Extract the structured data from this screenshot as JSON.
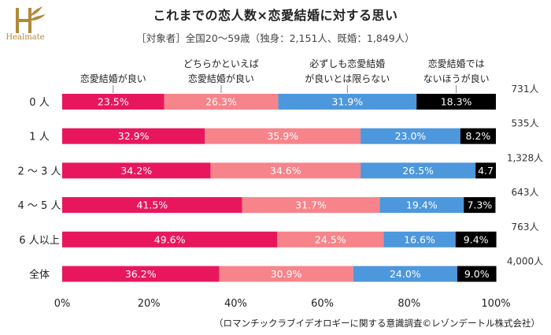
{
  "brand": {
    "logo_text": "Healmate",
    "logo_color": "#b08a3a"
  },
  "chart_data": {
    "type": "bar",
    "orientation": "horizontal",
    "stacked": true,
    "title": "これまでの恋人数×恋愛結婚に対する思い",
    "subtitle": "［対象者］全国20～59歳（独身：2,151人、既婚：1,849人）",
    "categories": [
      "0 人",
      "1 人",
      "2 ～ 3 人",
      "4 ～ 5 人",
      "6 人以上",
      "全体"
    ],
    "counts": [
      "731人",
      "535人",
      "1,328人",
      "643人",
      "763人",
      "4,000人"
    ],
    "series": [
      {
        "name": "恋愛結婚が良い",
        "color": "#e8175d",
        "label_color": "#ffffff",
        "values": [
          23.5,
          32.9,
          34.2,
          41.5,
          49.6,
          36.2
        ],
        "labels": [
          "23.5%",
          "32.9%",
          "34.2%",
          "41.5%",
          "49.6%",
          "36.2%"
        ]
      },
      {
        "name": "どちらかといえば恋愛結婚が良い",
        "color": "#f7848a",
        "label_color": "#ffffff",
        "values": [
          26.3,
          35.9,
          34.6,
          31.7,
          24.5,
          30.9
        ],
        "labels": [
          "26.3%",
          "35.9%",
          "34.6%",
          "31.7%",
          "24.5%",
          "30.9%"
        ]
      },
      {
        "name": "必ずしも恋愛結婚が良いとは限らない",
        "color": "#4d97dc",
        "label_color": "#ffffff",
        "values": [
          31.9,
          23.0,
          26.5,
          19.4,
          16.6,
          24.0
        ],
        "labels": [
          "31.9%",
          "23.0%",
          "26.5%",
          "19.4%",
          "16.6%",
          "24.0%"
        ]
      },
      {
        "name": "恋愛結婚ではないほうが良い",
        "color": "#000000",
        "label_color": "#ffffff",
        "values": [
          18.3,
          8.2,
          4.7,
          7.3,
          9.4,
          9.0
        ],
        "labels": [
          "18.3%",
          "8.2%",
          "4.7",
          "7.3%",
          "9.4%",
          "9.0%"
        ]
      }
    ],
    "legend_labels": [
      [
        "恋愛結婚が良い"
      ],
      [
        "どちらかといえば",
        "恋愛結婚が良い"
      ],
      [
        "必ずしも恋愛結婚",
        "が良いとは限らない"
      ],
      [
        "恋愛結婚では",
        "ないほうが良い"
      ]
    ],
    "xlim": [
      0,
      100
    ],
    "xticks": [
      "0%",
      "20%",
      "40%",
      "60%",
      "80%",
      "100%"
    ],
    "grid": false,
    "legend_placement": "top",
    "source": "（ロマンチックラブイデオロギーに関する意識調査©レゾンデートル株式会社）"
  }
}
